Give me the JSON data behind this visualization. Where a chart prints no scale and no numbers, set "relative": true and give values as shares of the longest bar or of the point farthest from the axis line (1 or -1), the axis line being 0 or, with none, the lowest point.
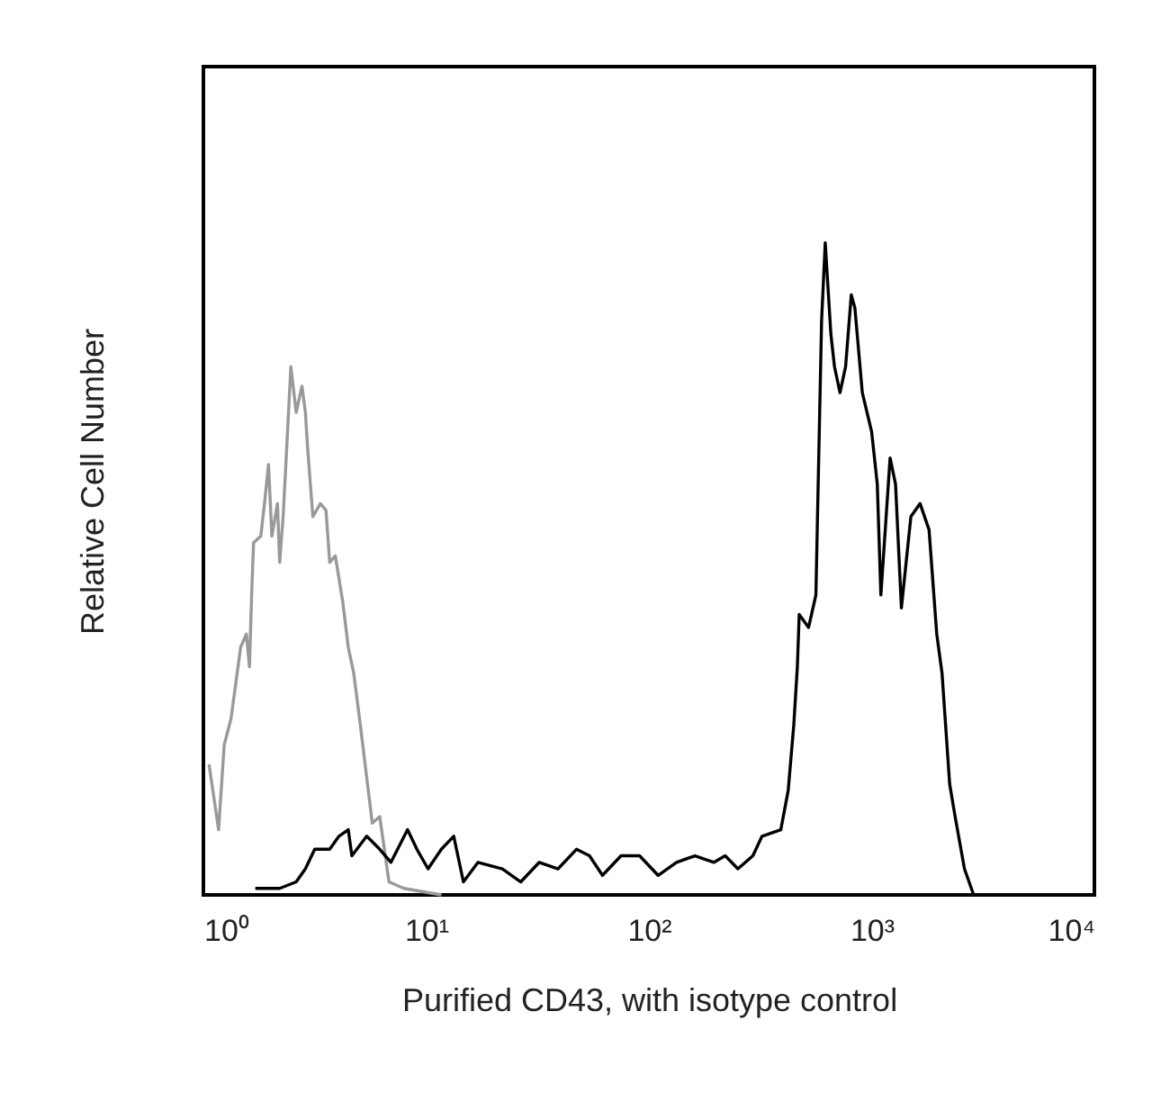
{
  "chart_data": {
    "type": "line",
    "relative": true,
    "log": "x",
    "xlabel": "Purified CD43, with isotype control",
    "ylabel": "Relative Cell Number",
    "xlim": [
      1,
      10000
    ],
    "xticks": [
      {
        "value": 1,
        "label": "10⁰"
      },
      {
        "value": 10,
        "label": "10¹"
      },
      {
        "value": 100,
        "label": "10²"
      },
      {
        "value": 1000,
        "label": "10³"
      },
      {
        "value": 10000,
        "label": "10⁴"
      }
    ],
    "grid": false,
    "series": [
      {
        "color": "#999999",
        "x": [
          1.06,
          1.17,
          1.24,
          1.33,
          1.47,
          1.56,
          1.61,
          1.65,
          1.68,
          1.81,
          1.88,
          1.96,
          2.03,
          2.15,
          2.2,
          2.28,
          2.37,
          2.47,
          2.61,
          2.77,
          2.87,
          2.93,
          3.1,
          3.35,
          3.55,
          3.69,
          3.91,
          4.22,
          4.47,
          4.73,
          5.11,
          5.41,
          5.73,
          6.19,
          6.81,
          7.94,
          11.7
        ],
        "values": [
          0.2,
          0.1,
          0.23,
          0.27,
          0.38,
          0.4,
          0.35,
          0.47,
          0.54,
          0.55,
          0.6,
          0.66,
          0.55,
          0.6,
          0.51,
          0.58,
          0.69,
          0.81,
          0.74,
          0.78,
          0.74,
          0.69,
          0.58,
          0.6,
          0.59,
          0.51,
          0.52,
          0.45,
          0.38,
          0.34,
          0.25,
          0.18,
          0.11,
          0.12,
          0.02,
          0.01,
          0
        ]
      },
      {
        "color": "#000000",
        "x": [
          1.71,
          2.2,
          2.61,
          2.87,
          3.16,
          3.69,
          4.06,
          4.47,
          4.64,
          5.41,
          6.19,
          6.95,
          8.25,
          9.09,
          10.2,
          11.7,
          13.3,
          14.7,
          17.1,
          22.0,
          26.6,
          32.2,
          39.1,
          47.3,
          54.1,
          61.9,
          75.0,
          90.8,
          110,
          133,
          161,
          196,
          220,
          251,
          293,
          322,
          391,
          422,
          447,
          464,
          473,
          521,
          562,
          573,
          596,
          619,
          656,
          681,
          721,
          764,
          810,
          841,
          908,
          1000,
          1060,
          1100,
          1210,
          1280,
          1360,
          1500,
          1650,
          1810,
          1960,
          2070,
          2240,
          2370,
          2610,
          2870
        ],
        "values": [
          0.01,
          0.01,
          0.02,
          0.04,
          0.07,
          0.07,
          0.09,
          0.1,
          0.06,
          0.09,
          0.07,
          0.05,
          0.1,
          0.07,
          0.04,
          0.07,
          0.09,
          0.02,
          0.05,
          0.04,
          0.02,
          0.05,
          0.04,
          0.07,
          0.06,
          0.03,
          0.06,
          0.06,
          0.03,
          0.05,
          0.06,
          0.05,
          0.06,
          0.04,
          0.06,
          0.09,
          0.1,
          0.16,
          0.26,
          0.35,
          0.43,
          0.41,
          0.46,
          0.6,
          0.88,
          1.0,
          0.86,
          0.81,
          0.77,
          0.81,
          0.92,
          0.9,
          0.77,
          0.71,
          0.63,
          0.46,
          0.67,
          0.63,
          0.44,
          0.58,
          0.6,
          0.56,
          0.4,
          0.34,
          0.17,
          0.12,
          0.04,
          0
        ]
      }
    ]
  }
}
